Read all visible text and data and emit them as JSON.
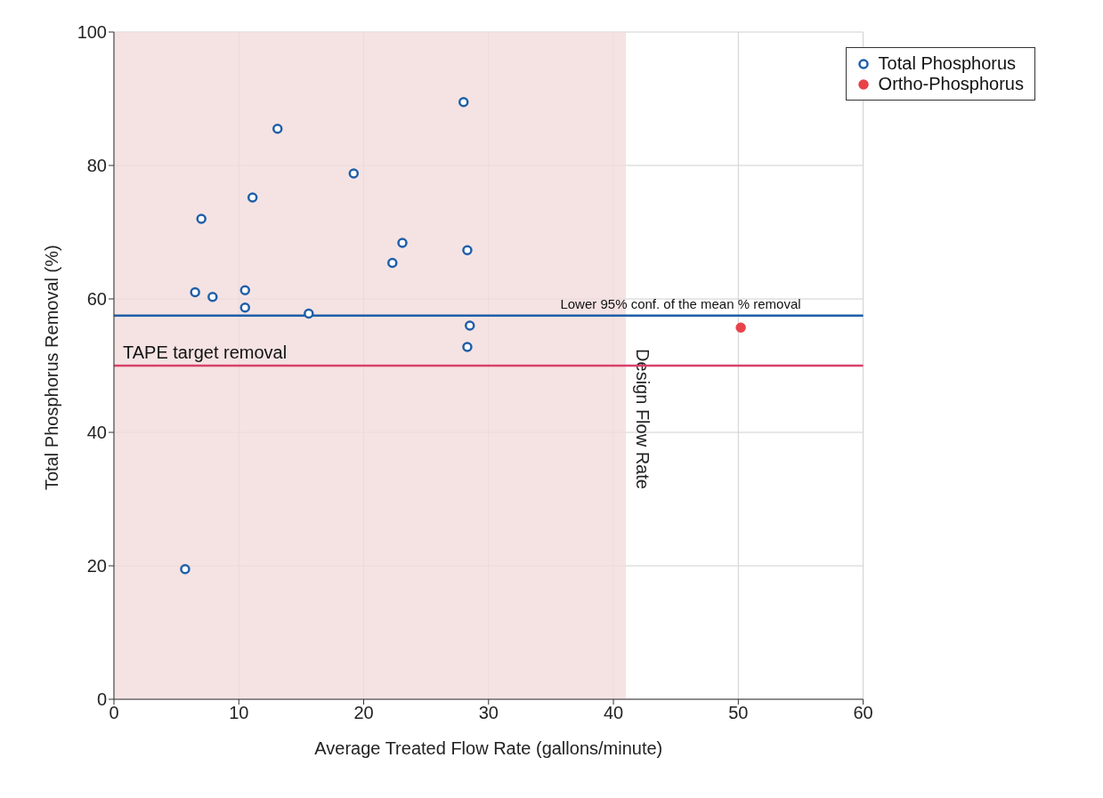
{
  "chart_data": {
    "type": "scatter",
    "xlabel": "Average Treated Flow Rate (gallons/minute)",
    "ylabel": "Total Phosphorus Removal (%)",
    "series": [
      {
        "name": "Total Phosphorus",
        "color": "#1f5fa8",
        "x": [
          5.7,
          6.5,
          7.0,
          7.9,
          10.5,
          10.5,
          11.1,
          13.1,
          15.6,
          19.2,
          22.3,
          23.1,
          28.0,
          28.3,
          28.5,
          28.3
        ],
        "values": [
          19.5,
          61,
          72,
          60.3,
          61.3,
          58.7,
          75.2,
          85.5,
          57.8,
          78.8,
          65.4,
          68.4,
          89.5,
          67.3,
          56,
          52.8
        ]
      },
      {
        "name": "Ortho-Phosphorus",
        "color": "#e8434a",
        "x": [
          50.2
        ],
        "values": [
          55.7
        ]
      }
    ],
    "xlim": [
      0,
      60
    ],
    "xticks": [
      0,
      10,
      20,
      30,
      40,
      50,
      60
    ],
    "ylim": [
      0,
      100
    ],
    "yticks": [
      0,
      20,
      40,
      60,
      80,
      100
    ],
    "grid": true,
    "legend": "top right",
    "marker": "circle",
    "ref_lines": [
      {
        "axis": "y",
        "value": 57.5,
        "label": "Lower 95% conf. of the mean % removal",
        "color": "#1f5fa8"
      },
      {
        "axis": "y",
        "value": 50,
        "label": "TAPE target removal",
        "color": "#d9416a"
      }
    ],
    "bands": [
      {
        "axis": "x",
        "from": 0,
        "to": 41,
        "label": "Design Flow Rate",
        "color": "#f3dcdc"
      }
    ]
  }
}
